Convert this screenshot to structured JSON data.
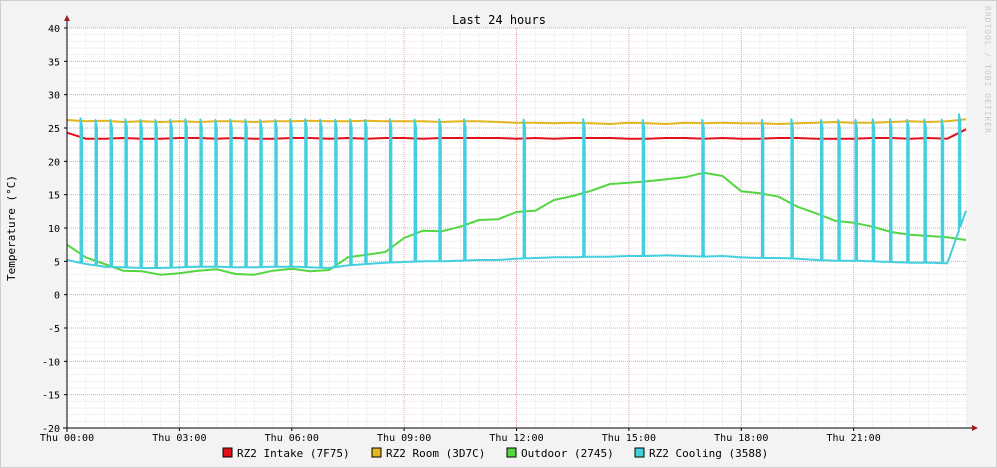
{
  "chart_data": {
    "type": "line",
    "title": "Last 24 hours",
    "ylabel": "Temperature (°C)",
    "watermark": "RRDTOOL / TOBI OETIKER",
    "xlim": [
      0,
      24
    ],
    "ylim": [
      -20,
      40
    ],
    "yticks": [
      40,
      35,
      30,
      25,
      20,
      15,
      10,
      5,
      0,
      -5,
      -10,
      -15,
      -20
    ],
    "xticks": [
      {
        "x": 0,
        "label": "Thu 00:00"
      },
      {
        "x": 3,
        "label": "Thu 03:00"
      },
      {
        "x": 6,
        "label": "Thu 06:00"
      },
      {
        "x": 9,
        "label": "Thu 09:00"
      },
      {
        "x": 12,
        "label": "Thu 12:00"
      },
      {
        "x": 15,
        "label": "Thu 15:00"
      },
      {
        "x": 18,
        "label": "Thu 18:00"
      },
      {
        "x": 21,
        "label": "Thu 21:00"
      }
    ],
    "grid": true,
    "legend_position": "bottom",
    "series": [
      {
        "name": "RZ2 Intake (7F75)",
        "color": "#e3101a",
        "x": [
          0.0,
          0.5,
          1.0,
          1.5,
          2.0,
          2.5,
          3.0,
          3.5,
          4.0,
          4.5,
          5.0,
          5.5,
          6.0,
          6.5,
          7.0,
          7.5,
          8.0,
          8.5,
          9.0,
          9.5,
          10.0,
          10.5,
          11.0,
          11.5,
          12.0,
          12.5,
          13.0,
          13.5,
          14.0,
          14.5,
          15.0,
          15.5,
          16.0,
          16.5,
          17.0,
          17.5,
          18.0,
          18.5,
          19.0,
          19.5,
          20.0,
          20.5,
          21.0,
          21.5,
          22.0,
          22.5,
          23.0,
          23.5,
          24.0
        ],
        "values": [
          24.3,
          23.4,
          23.4,
          23.5,
          23.4,
          23.4,
          23.5,
          23.5,
          23.4,
          23.5,
          23.4,
          23.4,
          23.5,
          23.5,
          23.4,
          23.5,
          23.4,
          23.5,
          23.5,
          23.4,
          23.5,
          23.5,
          23.5,
          23.5,
          23.4,
          23.5,
          23.4,
          23.5,
          23.5,
          23.5,
          23.4,
          23.4,
          23.5,
          23.5,
          23.4,
          23.5,
          23.4,
          23.4,
          23.5,
          23.5,
          23.4,
          23.4,
          23.4,
          23.5,
          23.5,
          23.4,
          23.5,
          23.4,
          24.8
        ]
      },
      {
        "name": "RZ2 Room (3D7C)",
        "color": "#e4b51d",
        "x": [
          0.0,
          0.5,
          1.0,
          1.5,
          2.0,
          2.5,
          3.0,
          3.5,
          4.0,
          4.5,
          5.0,
          5.5,
          6.0,
          6.5,
          7.0,
          7.5,
          8.0,
          8.5,
          9.0,
          9.5,
          10.0,
          10.5,
          11.0,
          11.5,
          12.0,
          12.5,
          13.0,
          13.5,
          14.0,
          14.5,
          15.0,
          15.5,
          16.0,
          16.5,
          17.0,
          17.5,
          18.0,
          18.5,
          19.0,
          19.5,
          20.0,
          20.5,
          21.0,
          21.5,
          22.0,
          22.5,
          23.0,
          23.5,
          24.0
        ],
        "values": [
          26.2,
          26.0,
          26.1,
          25.9,
          26.0,
          25.9,
          26.0,
          25.9,
          26.0,
          26.0,
          25.9,
          26.0,
          26.0,
          26.1,
          26.0,
          26.0,
          26.1,
          26.0,
          26.0,
          26.0,
          25.9,
          26.0,
          26.0,
          25.9,
          25.8,
          25.8,
          25.7,
          25.8,
          25.7,
          25.6,
          25.8,
          25.7,
          25.6,
          25.8,
          25.7,
          25.8,
          25.7,
          25.7,
          25.6,
          25.7,
          25.8,
          25.9,
          25.8,
          25.8,
          25.9,
          26.0,
          25.9,
          26.0,
          26.3
        ]
      },
      {
        "name": "Outdoor (2745)",
        "color": "#53d640",
        "x": [
          0.0,
          0.5,
          1.0,
          1.5,
          2.0,
          2.5,
          3.0,
          3.5,
          4.0,
          4.5,
          5.0,
          5.5,
          6.0,
          6.5,
          7.0,
          7.5,
          8.0,
          8.5,
          9.0,
          9.5,
          10.0,
          10.5,
          11.0,
          11.5,
          12.0,
          12.5,
          13.0,
          13.5,
          14.0,
          14.5,
          15.0,
          15.5,
          16.0,
          16.5,
          17.0,
          17.5,
          18.0,
          18.5,
          19.0,
          19.5,
          20.0,
          20.5,
          21.0,
          21.5,
          22.0,
          22.5,
          23.0,
          23.5,
          24.0
        ],
        "values": [
          7.5,
          5.6,
          4.6,
          3.6,
          3.5,
          3.0,
          3.2,
          3.6,
          3.8,
          3.1,
          3.0,
          3.6,
          3.9,
          3.5,
          3.7,
          5.6,
          6.0,
          6.4,
          8.5,
          9.6,
          9.5,
          10.2,
          11.2,
          11.3,
          12.4,
          12.6,
          14.2,
          14.8,
          15.6,
          16.6,
          16.8,
          17.0,
          17.3,
          17.6,
          18.3,
          17.8,
          15.5,
          15.2,
          14.7,
          13.2,
          12.2,
          11.1,
          10.8,
          10.2,
          9.4,
          9.0,
          8.8,
          8.6,
          8.2
        ]
      },
      {
        "name": "RZ2 Cooling (3588)",
        "color": "#44cfdf",
        "x": [
          0.0,
          0.5,
          1.0,
          1.5,
          2.0,
          2.5,
          3.0,
          3.5,
          4.0,
          4.5,
          5.0,
          5.5,
          6.0,
          6.5,
          7.0,
          7.5,
          8.0,
          8.5,
          9.0,
          9.5,
          10.0,
          10.5,
          11.0,
          11.5,
          12.0,
          12.5,
          13.0,
          13.5,
          14.0,
          14.5,
          15.0,
          15.5,
          16.0,
          16.5,
          17.0,
          17.5,
          18.0,
          18.5,
          19.0,
          19.5,
          20.0,
          20.5,
          21.0,
          21.5,
          22.0,
          22.5,
          23.0,
          23.5,
          24.0
        ],
        "values": [
          5.2,
          4.6,
          4.2,
          4.1,
          4.0,
          4.0,
          4.1,
          4.2,
          4.2,
          4.1,
          4.1,
          4.2,
          4.2,
          4.1,
          4.0,
          4.4,
          4.6,
          4.8,
          4.9,
          5.0,
          5.0,
          5.1,
          5.2,
          5.2,
          5.4,
          5.5,
          5.6,
          5.6,
          5.7,
          5.7,
          5.8,
          5.8,
          5.9,
          5.8,
          5.7,
          5.8,
          5.6,
          5.5,
          5.5,
          5.4,
          5.2,
          5.1,
          5.1,
          5.0,
          4.9,
          4.8,
          4.8,
          4.7,
          12.6
        ]
      }
    ]
  }
}
